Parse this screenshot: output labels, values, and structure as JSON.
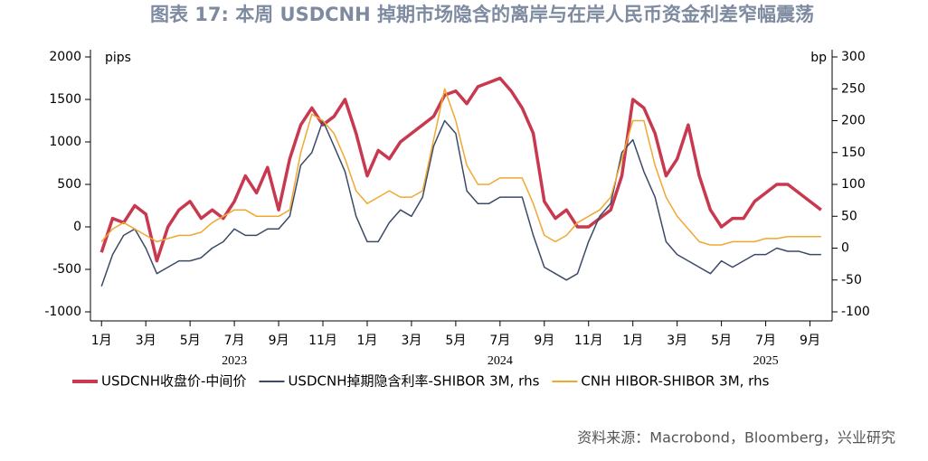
{
  "chart_data": {
    "type": "line",
    "title": "图表 17: 本周 USDCNH 掉期市场隐含的离岸与在岸人民币资金利差窄幅震荡",
    "source": "资料来源：Macrobond，Bloomberg，兴业研究",
    "ylabel": "pips",
    "y2label": "bp",
    "x": [
      0,
      0.5,
      1,
      1.5,
      2,
      2.5,
      3,
      3.5,
      4,
      4.5,
      5,
      5.5,
      6,
      6.5,
      7,
      7.5,
      8,
      8.5,
      9,
      9.5,
      10,
      10.5,
      11,
      11.5,
      12,
      12.5,
      13,
      13.5,
      14,
      14.5,
      15,
      15.5,
      16,
      16.5,
      17,
      17.5,
      18,
      18.5,
      19,
      19.5,
      20,
      20.5,
      21,
      21.5,
      22,
      22.5,
      23,
      23.5,
      24,
      24.5,
      25,
      25.5,
      26,
      26.5,
      27,
      27.5,
      28,
      28.5,
      29,
      29.5,
      30,
      30.5,
      31,
      31.5,
      32,
      32.5
    ],
    "xlim": [
      -0.5,
      33
    ],
    "xticks": [
      {
        "value": 0,
        "label": "1月"
      },
      {
        "value": 2,
        "label": "3月"
      },
      {
        "value": 4,
        "label": "5月"
      },
      {
        "value": 6,
        "label": "7月"
      },
      {
        "value": 8,
        "label": "9月"
      },
      {
        "value": 10,
        "label": "11月"
      },
      {
        "value": 12,
        "label": "1月"
      },
      {
        "value": 14,
        "label": "3月"
      },
      {
        "value": 16,
        "label": "5月"
      },
      {
        "value": 18,
        "label": "7月"
      },
      {
        "value": 20,
        "label": "9月"
      },
      {
        "value": 22,
        "label": "11月"
      },
      {
        "value": 24,
        "label": "1月"
      },
      {
        "value": 26,
        "label": "3月"
      },
      {
        "value": 28,
        "label": "5月"
      },
      {
        "value": 30,
        "label": "7月"
      },
      {
        "value": 32,
        "label": "9月"
      }
    ],
    "x_year_labels": [
      {
        "value": 6,
        "label": "2023"
      },
      {
        "value": 18,
        "label": "2024"
      },
      {
        "value": 30,
        "label": "2025"
      }
    ],
    "ylim": [
      -1000,
      2000
    ],
    "yticks": [
      -1000,
      -500,
      0,
      500,
      1000,
      1500,
      2000
    ],
    "y2lim": [
      -100,
      300
    ],
    "y2ticks": [
      -100,
      -50,
      0,
      50,
      100,
      150,
      200,
      250,
      300
    ],
    "series": [
      {
        "name": "USDCNH收盘价-中间价",
        "color": "#c8384f",
        "width": 3.5,
        "values": [
          -300,
          100,
          50,
          250,
          150,
          -400,
          0,
          200,
          300,
          100,
          200,
          100,
          300,
          600,
          400,
          700,
          200,
          800,
          1200,
          1400,
          1200,
          1300,
          1500,
          1100,
          600,
          900,
          800,
          1000,
          1100,
          1200,
          1300,
          1550,
          1600,
          1450,
          1650,
          1700,
          1750,
          1600,
          1400,
          1100,
          300,
          100,
          200,
          0,
          0,
          100,
          200,
          600,
          1500,
          1400,
          1100,
          600,
          800,
          1200,
          600,
          200,
          0,
          100,
          100,
          300,
          400,
          500,
          500,
          400,
          300,
          200
        ]
      },
      {
        "name": "USDCNH掉期隐含利率-SHIBOR 3M, rhs",
        "color": "#3b4a66",
        "width": 1.5,
        "axis": "y2",
        "values": [
          -60,
          -10,
          20,
          30,
          0,
          -40,
          -30,
          -20,
          -20,
          -15,
          0,
          10,
          30,
          20,
          20,
          30,
          30,
          50,
          130,
          150,
          200,
          160,
          120,
          50,
          10,
          10,
          40,
          60,
          50,
          80,
          160,
          200,
          180,
          90,
          70,
          70,
          80,
          80,
          80,
          20,
          -30,
          -40,
          -50,
          -40,
          10,
          50,
          70,
          150,
          170,
          120,
          80,
          10,
          -10,
          -20,
          -30,
          -40,
          -20,
          -30,
          -20,
          -10,
          -10,
          0,
          -5,
          -5,
          -10,
          -10
        ]
      },
      {
        "name": "CNH HIBOR-SHIBOR 3M, rhs",
        "color": "#f0a830",
        "width": 1.5,
        "axis": "y2",
        "values": [
          10,
          30,
          40,
          30,
          20,
          10,
          15,
          20,
          20,
          25,
          40,
          50,
          60,
          60,
          50,
          50,
          50,
          60,
          150,
          210,
          200,
          180,
          140,
          90,
          70,
          80,
          90,
          80,
          80,
          90,
          170,
          250,
          200,
          130,
          100,
          100,
          110,
          110,
          110,
          70,
          20,
          10,
          20,
          40,
          50,
          60,
          80,
          140,
          200,
          200,
          130,
          80,
          50,
          30,
          10,
          5,
          5,
          10,
          10,
          10,
          15,
          15,
          18,
          18,
          18,
          18
        ]
      }
    ]
  }
}
